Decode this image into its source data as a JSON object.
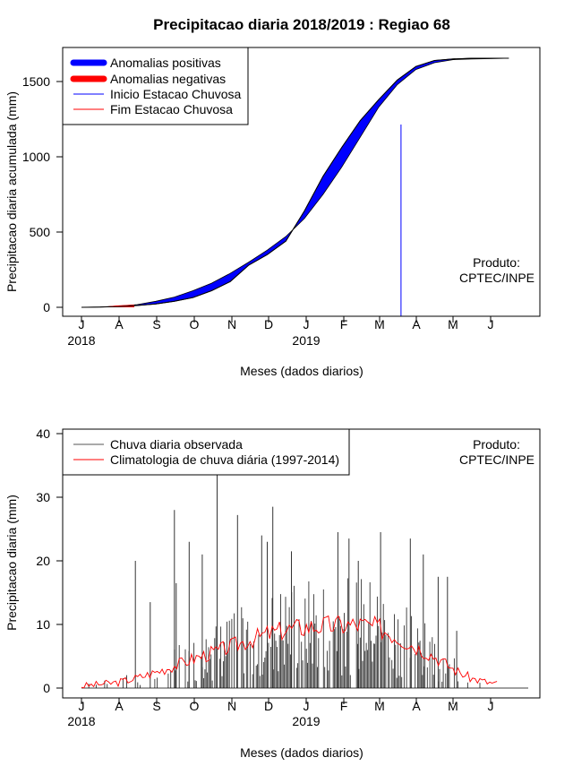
{
  "chart_data": [
    {
      "type": "area",
      "title": "Precipitacao diaria 2018/2019 : Regiao 68",
      "xlabel": "Meses (dados diarios)",
      "ylabel": "Precipitacao diaria acumulada (mm)",
      "xticks": [
        "J",
        "A",
        "S",
        "O",
        "N",
        "D",
        "J",
        "F",
        "M",
        "A",
        "M",
        "J"
      ],
      "year_labels": [
        {
          "text": "2018",
          "at_tick": 0
        },
        {
          "text": "2019",
          "at_tick": 6
        }
      ],
      "ylim": [
        0,
        1700
      ],
      "yticks": [
        0,
        500,
        1000,
        1500
      ],
      "note": [
        "Produto:",
        "CPTEC/INPE"
      ],
      "legend": {
        "position": "top-left",
        "entries": [
          {
            "label": "Anomalias positivas",
            "color": "#0000ff",
            "style": "thick"
          },
          {
            "label": "Anomalias negativas",
            "color": "#ff0000",
            "style": "thick"
          },
          {
            "label": "Inicio Estacao Chuvosa",
            "color": "#0000ff",
            "style": "thin"
          },
          {
            "label": "Fim Estacao Chuvosa",
            "color": "#ff0000",
            "style": "thin"
          }
        ]
      },
      "rain_season_start_month": 8.6,
      "observed": {
        "x": [
          0,
          0.5,
          1,
          1.5,
          2,
          2.5,
          3,
          3.5,
          4,
          4.5,
          5,
          5.5,
          6,
          6.5,
          7,
          7.5,
          8,
          8.5,
          9,
          9.5,
          10,
          10.5,
          11,
          11.5
        ],
        "values": [
          0,
          2,
          5,
          12,
          22,
          40,
          65,
          110,
          170,
          280,
          350,
          440,
          640,
          870,
          1060,
          1240,
          1380,
          1510,
          1600,
          1640,
          1650,
          1655,
          1655,
          1655
        ]
      },
      "climatology": {
        "x": [
          0,
          0.5,
          1,
          1.5,
          2,
          2.5,
          3,
          3.5,
          4,
          4.5,
          5,
          5.5,
          6,
          6.5,
          7,
          7.5,
          8,
          8.5,
          9,
          9.5,
          10,
          10.5,
          11,
          11.5
        ],
        "values": [
          0,
          2,
          8,
          18,
          40,
          68,
          110,
          160,
          225,
          300,
          380,
          470,
          590,
          750,
          930,
          1130,
          1330,
          1480,
          1580,
          1625,
          1645,
          1650,
          1652,
          1655
        ]
      }
    },
    {
      "type": "bar",
      "xlabel": "Meses (dados diarios)",
      "ylabel": "Precipitacao diaria (mm)",
      "xticks": [
        "J",
        "A",
        "S",
        "O",
        "N",
        "D",
        "J",
        "F",
        "M",
        "A",
        "M",
        "J"
      ],
      "year_labels": [
        {
          "text": "2018",
          "at_tick": 0
        },
        {
          "text": "2019",
          "at_tick": 6
        }
      ],
      "ylim": [
        0,
        40
      ],
      "yticks": [
        0,
        10,
        20,
        30,
        40
      ],
      "note": [
        "Produto:",
        "CPTEC/INPE"
      ],
      "legend": {
        "position": "top-left",
        "entries": [
          {
            "label": "Chuva diaria observada",
            "color": "#555555"
          },
          {
            "label": "Climatologia de chuva diária (1997-2014)",
            "color": "#ff0000"
          }
        ]
      },
      "observed_peaks": [
        {
          "x": 1.45,
          "value": 20
        },
        {
          "x": 1.85,
          "value": 13.5
        },
        {
          "x": 2.5,
          "value": 28
        },
        {
          "x": 2.55,
          "value": 16.5
        },
        {
          "x": 2.9,
          "value": 23
        },
        {
          "x": 3.25,
          "value": 21
        },
        {
          "x": 3.65,
          "value": 33.5
        },
        {
          "x": 4.2,
          "value": 27.2
        },
        {
          "x": 4.85,
          "value": 24
        },
        {
          "x": 5.0,
          "value": 23
        },
        {
          "x": 5.15,
          "value": 28.5
        },
        {
          "x": 5.65,
          "value": 21.5
        },
        {
          "x": 6.9,
          "value": 24.5
        },
        {
          "x": 7.2,
          "value": 23.5
        },
        {
          "x": 7.45,
          "value": 20
        },
        {
          "x": 8.05,
          "value": 24.5
        },
        {
          "x": 8.85,
          "value": 23.5
        },
        {
          "x": 9.2,
          "value": 21
        },
        {
          "x": 9.6,
          "value": 17.5
        },
        {
          "x": 9.85,
          "value": 17.5
        },
        {
          "x": 10.1,
          "value": 9
        }
      ],
      "climatology": {
        "x": [
          0,
          0.5,
          1,
          1.5,
          2,
          2.5,
          3,
          3.5,
          4,
          4.5,
          5,
          5.5,
          6,
          6.5,
          7,
          7.5,
          8,
          8.5,
          9,
          9.5,
          10,
          10.5,
          11,
          11.5
        ],
        "values": [
          0.3,
          0.6,
          0.9,
          1.6,
          2.5,
          3.5,
          4.6,
          5.5,
          6.5,
          7.5,
          8.5,
          9.2,
          9.6,
          9.8,
          9.9,
          10,
          9.5,
          8,
          6.5,
          5,
          3,
          1.5,
          0.8,
          0.4
        ]
      }
    }
  ]
}
